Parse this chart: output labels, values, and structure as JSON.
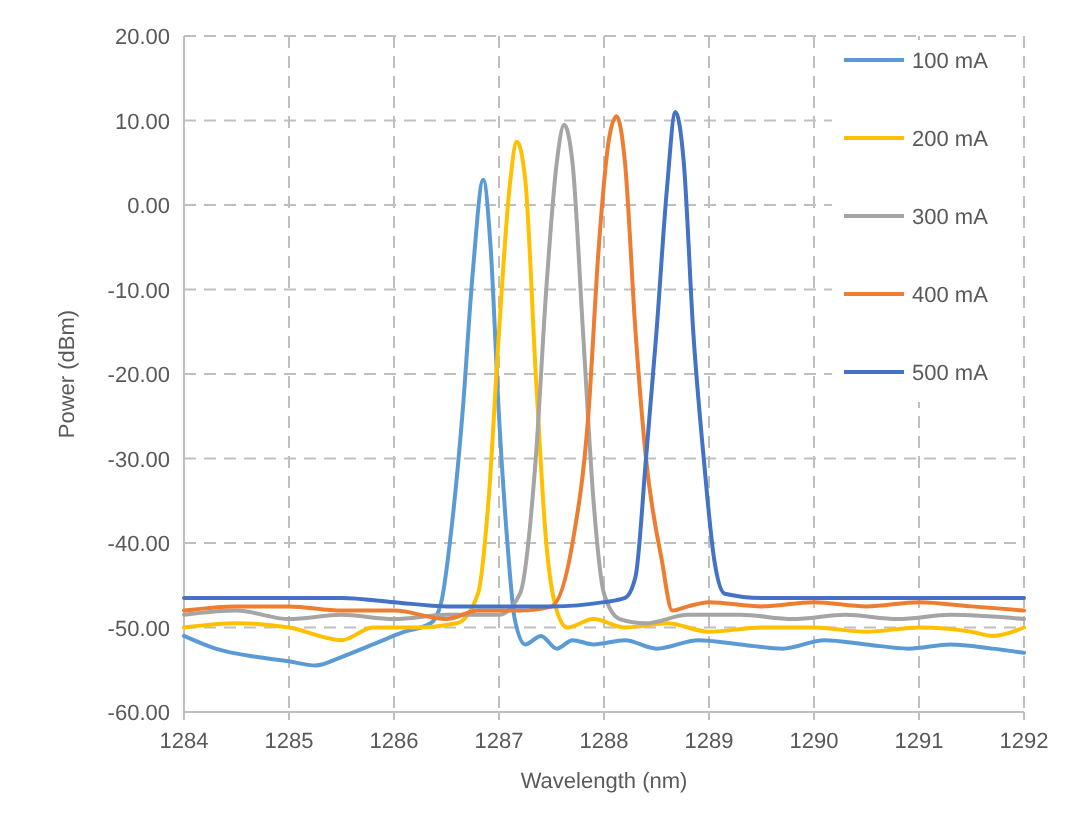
{
  "chart_data": {
    "type": "line",
    "xlabel": "Wavelength (nm)",
    "ylabel": "Power (dBm)",
    "xlim": [
      1284,
      1292
    ],
    "xticks": [
      1284,
      1285,
      1286,
      1287,
      1288,
      1289,
      1290,
      1291,
      1292
    ],
    "ylim": [
      -60,
      20
    ],
    "yticks": [
      {
        "value": -60,
        "label": "-60.00"
      },
      {
        "value": -50,
        "label": "-50.00"
      },
      {
        "value": -40,
        "label": "-40.00"
      },
      {
        "value": -30,
        "label": "-30.00"
      },
      {
        "value": -20,
        "label": "-20.00"
      },
      {
        "value": -10,
        "label": "-10.00"
      },
      {
        "value": 0,
        "label": "0.00"
      },
      {
        "value": 10,
        "label": "10.00"
      },
      {
        "value": 20,
        "label": "20.00"
      }
    ],
    "grid": true,
    "legend": "top right",
    "marker": "none",
    "line_style": "solid",
    "series": [
      {
        "name": "100 mA",
        "color": "#5b9bd5",
        "x": [
          1284,
          1284.3,
          1284.7,
          1285,
          1285.25,
          1285.5,
          1285.8,
          1286.1,
          1286.35,
          1286.45,
          1286.55,
          1286.65,
          1286.75,
          1286.85,
          1286.92,
          1287,
          1287.08,
          1287.15,
          1287.25,
          1287.4,
          1287.55,
          1287.7,
          1287.9,
          1288.2,
          1288.5,
          1288.9,
          1289.3,
          1289.7,
          1290.1,
          1290.5,
          1290.9,
          1291.3,
          1291.7,
          1292
        ],
        "values": [
          -51,
          -52.5,
          -53.5,
          -54,
          -54.5,
          -53.5,
          -52,
          -50.5,
          -49.5,
          -47,
          -38,
          -25,
          -8,
          3,
          -5,
          -25,
          -40,
          -49,
          -52,
          -51,
          -52.5,
          -51.5,
          -52,
          -51.5,
          -52.5,
          -51.5,
          -52,
          -52.5,
          -51.5,
          -52,
          -52.5,
          -52,
          -52.5,
          -53
        ]
      },
      {
        "name": "200 mA",
        "color": "#ffc000",
        "x": [
          1284,
          1284.5,
          1285,
          1285.5,
          1285.8,
          1286.2,
          1286.6,
          1286.8,
          1286.9,
          1287,
          1287.1,
          1287.17,
          1287.25,
          1287.35,
          1287.45,
          1287.55,
          1287.65,
          1287.9,
          1288.2,
          1288.6,
          1289,
          1289.5,
          1290,
          1290.5,
          1291,
          1291.5,
          1291.7,
          1292
        ],
        "values": [
          -50,
          -49.5,
          -50,
          -51.5,
          -50,
          -50,
          -49.5,
          -46,
          -35,
          -15,
          2,
          7.5,
          3,
          -20,
          -40,
          -48,
          -50,
          -49,
          -50,
          -49.5,
          -50.5,
          -50,
          -50,
          -50.5,
          -50,
          -50.5,
          -51,
          -50
        ]
      },
      {
        "name": "300 mA",
        "color": "#a5a5a5",
        "x": [
          1284,
          1284.5,
          1285,
          1285.5,
          1286,
          1286.5,
          1287,
          1287.2,
          1287.35,
          1287.45,
          1287.55,
          1287.62,
          1287.7,
          1287.8,
          1287.9,
          1288,
          1288.15,
          1288.4,
          1288.8,
          1289.3,
          1289.8,
          1290.3,
          1290.8,
          1291.3,
          1292
        ],
        "values": [
          -48.5,
          -48,
          -49,
          -48.5,
          -49,
          -48.5,
          -48.5,
          -46,
          -30,
          -10,
          5,
          9.5,
          5,
          -15,
          -35,
          -46,
          -49,
          -49.5,
          -48.5,
          -48.5,
          -49,
          -48.5,
          -49,
          -48.5,
          -49
        ]
      },
      {
        "name": "400 mA",
        "color": "#ed7d31",
        "x": [
          1284,
          1284.5,
          1285,
          1285.5,
          1286,
          1286.5,
          1286.8,
          1287.2,
          1287.5,
          1287.7,
          1287.85,
          1287.95,
          1288.05,
          1288.12,
          1288.2,
          1288.3,
          1288.4,
          1288.55,
          1288.65,
          1288.8,
          1289,
          1289.5,
          1290,
          1290.5,
          1291,
          1291.5,
          1292
        ],
        "values": [
          -48,
          -47.5,
          -47.5,
          -48,
          -48,
          -49,
          -48,
          -48,
          -47.5,
          -40,
          -25,
          -5,
          8,
          10.5,
          5,
          -15,
          -30,
          -42,
          -48,
          -47.5,
          -47,
          -47.5,
          -47,
          -47.5,
          -47,
          -47.5,
          -48
        ]
      },
      {
        "name": "500 mA",
        "color": "#4472c4",
        "x": [
          1284,
          1284.5,
          1285,
          1285.5,
          1286,
          1286.5,
          1287,
          1287.5,
          1288,
          1288.2,
          1288.3,
          1288.4,
          1288.5,
          1288.6,
          1288.68,
          1288.76,
          1288.85,
          1288.95,
          1289.05,
          1289.15,
          1289.5,
          1290,
          1290.5,
          1291,
          1291.5,
          1292
        ],
        "values": [
          -46.5,
          -46.5,
          -46.5,
          -46.5,
          -47,
          -47.5,
          -47.5,
          -47.5,
          -47,
          -46.5,
          -44,
          -30,
          -15,
          2,
          11,
          5,
          -15,
          -30,
          -42,
          -46,
          -46.5,
          -46.5,
          -46.5,
          -46.5,
          -46.5,
          -46.5
        ]
      }
    ]
  }
}
